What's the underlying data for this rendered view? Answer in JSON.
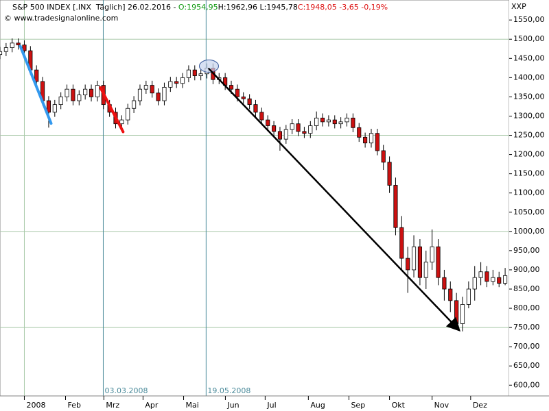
{
  "chart_data": {
    "type": "candlestick",
    "header": [
      {
        "text": "S&P 500 INDEX [.INX  Täglich] 26.02.2016 - ",
        "color": "#000000"
      },
      {
        "text": "O:1954,95",
        "color": "#119911"
      },
      {
        "text": "H:1962,96 L:1945,78",
        "color": "#000000"
      },
      {
        "text": "C:1948,05 -3,65 -0,19%",
        "color": "#dd1111"
      }
    ],
    "source": "© www.tradesignalonline.com",
    "axis_label": "XXP",
    "up_color": "#ffffff",
    "down_color": "#cc1111",
    "x": [
      -12,
      -9,
      -6,
      -3,
      0,
      3,
      6,
      9,
      12,
      15,
      18,
      21,
      24,
      27,
      30,
      33,
      36,
      39,
      42,
      45,
      48,
      51,
      54,
      57,
      60,
      63,
      66,
      69,
      72,
      75,
      78,
      81,
      84,
      87,
      90,
      93,
      96,
      99,
      102,
      105,
      108,
      111,
      114,
      117,
      120,
      123,
      126,
      129,
      132,
      135,
      138,
      141,
      144,
      147,
      150,
      153,
      156,
      159,
      162,
      165,
      168,
      171,
      174,
      177,
      180,
      183,
      186,
      189,
      192,
      195,
      198,
      201,
      204,
      207,
      210,
      213,
      216,
      219,
      222,
      225,
      228,
      231,
      234,
      237
    ],
    "open": [
      1460,
      1468,
      1478,
      1490,
      1485,
      1470,
      1420,
      1390,
      1340,
      1310,
      1330,
      1350,
      1370,
      1340,
      1355,
      1370,
      1350,
      1380,
      1330,
      1310,
      1280,
      1290,
      1320,
      1340,
      1370,
      1380,
      1360,
      1340,
      1375,
      1390,
      1385,
      1400,
      1420,
      1405,
      1410,
      1425,
      1395,
      1400,
      1380,
      1370,
      1350,
      1345,
      1330,
      1310,
      1290,
      1275,
      1260,
      1240,
      1265,
      1280,
      1260,
      1255,
      1275,
      1295,
      1285,
      1290,
      1280,
      1285,
      1295,
      1270,
      1245,
      1230,
      1255,
      1210,
      1180,
      1120,
      1010,
      930,
      900,
      960,
      880,
      920,
      960,
      880,
      850,
      820,
      760,
      810,
      850,
      880,
      895,
      870,
      880,
      865
    ],
    "high": [
      1480,
      1490,
      1502,
      1502,
      1497,
      1482,
      1432,
      1402,
      1352,
      1342,
      1362,
      1382,
      1382,
      1367,
      1382,
      1382,
      1392,
      1392,
      1342,
      1322,
      1302,
      1332,
      1352,
      1382,
      1392,
      1392,
      1372,
      1387,
      1402,
      1402,
      1412,
      1432,
      1432,
      1422,
      1437,
      1437,
      1412,
      1412,
      1392,
      1382,
      1362,
      1357,
      1342,
      1322,
      1302,
      1287,
      1272,
      1277,
      1292,
      1292,
      1272,
      1287,
      1312,
      1307,
      1302,
      1302,
      1297,
      1307,
      1307,
      1282,
      1257,
      1267,
      1267,
      1225,
      1195,
      1140,
      1040,
      960,
      990,
      980,
      950,
      1005,
      980,
      900,
      870,
      840,
      830,
      870,
      910,
      920,
      910,
      900,
      895,
      905
    ],
    "low": [
      1448,
      1456,
      1466,
      1473,
      1458,
      1408,
      1378,
      1328,
      1270,
      1298,
      1318,
      1338,
      1328,
      1328,
      1343,
      1338,
      1338,
      1318,
      1298,
      1268,
      1268,
      1278,
      1308,
      1328,
      1358,
      1348,
      1328,
      1328,
      1363,
      1373,
      1373,
      1388,
      1393,
      1393,
      1398,
      1383,
      1383,
      1368,
      1358,
      1338,
      1333,
      1318,
      1298,
      1278,
      1263,
      1248,
      1210,
      1228,
      1253,
      1248,
      1243,
      1243,
      1263,
      1273,
      1273,
      1268,
      1268,
      1273,
      1258,
      1233,
      1218,
      1218,
      1198,
      1160,
      1100,
      990,
      900,
      840,
      880,
      860,
      850,
      900,
      860,
      820,
      790,
      745,
      740,
      800,
      820,
      860,
      855,
      860,
      855,
      860
    ],
    "close": [
      1468,
      1478,
      1490,
      1485,
      1470,
      1420,
      1390,
      1340,
      1310,
      1330,
      1350,
      1370,
      1340,
      1355,
      1370,
      1350,
      1380,
      1330,
      1310,
      1280,
      1290,
      1320,
      1340,
      1370,
      1380,
      1360,
      1340,
      1375,
      1390,
      1385,
      1400,
      1420,
      1405,
      1410,
      1425,
      1395,
      1400,
      1380,
      1370,
      1350,
      1345,
      1330,
      1310,
      1290,
      1275,
      1260,
      1240,
      1265,
      1280,
      1260,
      1255,
      1275,
      1295,
      1285,
      1290,
      1280,
      1285,
      1295,
      1270,
      1245,
      1230,
      1255,
      1210,
      1180,
      1120,
      1010,
      930,
      900,
      960,
      880,
      920,
      960,
      880,
      850,
      820,
      760,
      810,
      850,
      880,
      895,
      870,
      880,
      865,
      885
    ],
    "xlim": [
      -12,
      239
    ],
    "ylim": [
      572,
      1602
    ],
    "xticks": [
      {
        "value": 0,
        "label": "2008"
      },
      {
        "value": 20.3,
        "label": "Feb"
      },
      {
        "value": 39.2,
        "label": "Mrz"
      },
      {
        "value": 58.5,
        "label": "Apr"
      },
      {
        "value": 78.5,
        "label": "Mai"
      },
      {
        "value": 99.1,
        "label": "Jun"
      },
      {
        "value": 118.7,
        "label": "Jul"
      },
      {
        "value": 140,
        "label": "Aug"
      },
      {
        "value": 160,
        "label": "Sep"
      },
      {
        "value": 180,
        "label": "Okt"
      },
      {
        "value": 201,
        "label": "Nov"
      },
      {
        "value": 220,
        "label": "Dez"
      }
    ],
    "yticks": [
      {
        "value": 600,
        "label": "600,00"
      },
      {
        "value": 650,
        "label": "650,00"
      },
      {
        "value": 700,
        "label": "700,00"
      },
      {
        "value": 750,
        "label": "750,00"
      },
      {
        "value": 800,
        "label": "800,00"
      },
      {
        "value": 850,
        "label": "850,00"
      },
      {
        "value": 900,
        "label": "900,00"
      },
      {
        "value": 950,
        "label": "950,00"
      },
      {
        "value": 1000,
        "label": "1000,00"
      },
      {
        "value": 1050,
        "label": "1050,00"
      },
      {
        "value": 1100,
        "label": "1100,00"
      },
      {
        "value": 1150,
        "label": "1150,00"
      },
      {
        "value": 1200,
        "label": "1200,00"
      },
      {
        "value": 1250,
        "label": "1250,00"
      },
      {
        "value": 1300,
        "label": "1300,00"
      },
      {
        "value": 1350,
        "label": "1350,00"
      },
      {
        "value": 1400,
        "label": "1400,00"
      },
      {
        "value": 1450,
        "label": "1450,00"
      },
      {
        "value": 1500,
        "label": "1500,00"
      },
      {
        "value": 1550,
        "label": "1550,00"
      }
    ],
    "ygrid": [
      750,
      1000,
      1250,
      1500
    ],
    "xgrid": [
      0
    ],
    "grid_color": "#a8c8a8",
    "markers": [
      {
        "x": 38.9,
        "label": "03.03.2008",
        "color": "#4a8a9a"
      },
      {
        "x": 89.6,
        "label": "19.05.2008",
        "color": "#4a8a9a"
      }
    ],
    "trendlines": [
      {
        "color": "#3399ee",
        "width": 4,
        "points": [
          [
            -2,
            1482
          ],
          [
            13.2,
            1281
          ]
        ]
      },
      {
        "color": "#ee1111",
        "width": 4,
        "points": [
          [
            37.5,
            1374
          ],
          [
            48.7,
            1259
          ]
        ]
      },
      {
        "color": "#000000",
        "width": 2.5,
        "arrow": true,
        "points": [
          [
            91,
            1423
          ],
          [
            213.8,
            746
          ]
        ]
      }
    ],
    "ellipse": {
      "center": [
        91,
        1430
      ],
      "color": "#335599",
      "fill": "#c8d4ee"
    }
  }
}
